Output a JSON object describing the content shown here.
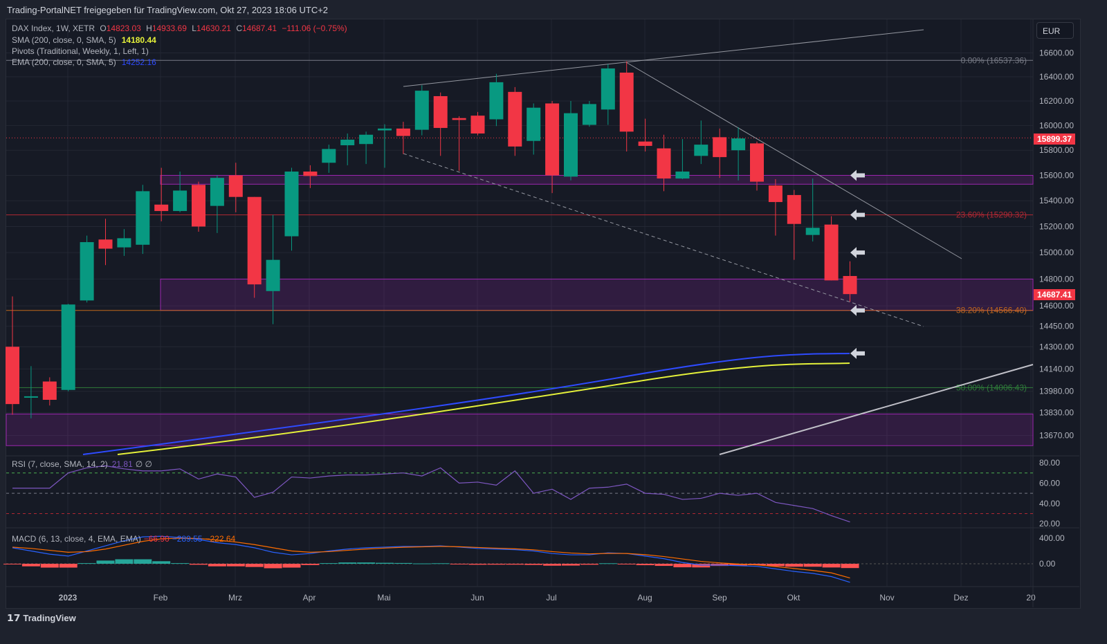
{
  "title": "Trading-PortalNET freigegeben für TradingView.com, Okt 27, 2023 18:06 UTC+2",
  "legend": {
    "symbol": "DAX Index, 1W, XETR",
    "o_label": "O",
    "o": "14823.03",
    "h_label": "H",
    "h": "14933.69",
    "l_label": "L",
    "l": "14630.21",
    "c_label": "C",
    "c": "14687.41",
    "change": "−111.06 (−0.75%)",
    "sma": "SMA (200, close, 0, SMA, 5)",
    "sma_val": "14180.44",
    "pivots": "Pivots (Traditional, Weekly, 1, Left, 1)",
    "ema": "EMA (200, close, 0, SMA, 5)",
    "ema_val": "14252.16",
    "rsi": "RSI (7, close, SMA, 14, 2)",
    "rsi_val": "21.81",
    "rsi_extra": "∅ ∅",
    "macd": "MACD (6, 13, close, 4, EMA, EMA)",
    "macd_hist": "−66.90",
    "macd_line": "−289.55",
    "macd_signal": "−222.64"
  },
  "currency": "EUR",
  "price_ticks": [
    "16600.00",
    "16400.00",
    "16200.00",
    "16000.00",
    "15800.00",
    "15600.00",
    "15400.00",
    "15200.00",
    "15000.00",
    "14800.00",
    "14600.00",
    "14450.00",
    "14300.00",
    "14140.00",
    "13980.00",
    "13830.00",
    "13670.00"
  ],
  "rsi_ticks": [
    "80.00",
    "60.00",
    "40.00",
    "20.00"
  ],
  "macd_ticks": [
    "400.00",
    "0.00"
  ],
  "time_labels": [
    "2023",
    "Feb",
    "Mrz",
    "Apr",
    "Mai",
    "Jun",
    "Jul",
    "Aug",
    "Sep",
    "Okt",
    "Nov",
    "Dez",
    "20"
  ],
  "price_tags": {
    "dotted": "15899.37",
    "last": "14687.41"
  },
  "fib": [
    {
      "label": "0.00% (16537.36)",
      "price": 16537.36,
      "color": "#787b86"
    },
    {
      "label": "23.60% (15290.32)",
      "price": 15290.32,
      "color": "#b22833"
    },
    {
      "label": "38.20% (14566.40)",
      "price": 14566.4,
      "color": "#c2681d"
    },
    {
      "label": "50.00% (14006.43)",
      "price": 14006.43,
      "color": "#2f7d3a"
    }
  ],
  "colors": {
    "up": "#089981",
    "down": "#f23645",
    "zone": "#9c27b0",
    "ema": "#2e4bff",
    "sma": "#e6f23a",
    "rsi": "#7e57c2",
    "macd": "#2962ff",
    "signal": "#ff6d00"
  },
  "zones": [
    [
      15530,
      15600
    ],
    [
      14566,
      14800
    ],
    [
      13600,
      13820
    ]
  ],
  "footer": "TradingView",
  "chart_data": {
    "type": "candlestick",
    "interval": "1W",
    "ohlc": [
      [
        14300,
        14670,
        13815,
        13890
      ],
      [
        13935,
        14160,
        13790,
        13945
      ],
      [
        14050,
        14080,
        13880,
        13920
      ],
      [
        13990,
        14615,
        13980,
        14610
      ],
      [
        14640,
        15130,
        14625,
        15080
      ],
      [
        15100,
        15260,
        14905,
        15030
      ],
      [
        15040,
        15180,
        14975,
        15110
      ],
      [
        15060,
        15525,
        14990,
        15475
      ],
      [
        15370,
        15660,
        15240,
        15320
      ],
      [
        15320,
        15630,
        15310,
        15480
      ],
      [
        15525,
        15550,
        15160,
        15200
      ],
      [
        15360,
        15600,
        15150,
        15580
      ],
      [
        15600,
        15700,
        15310,
        15430
      ],
      [
        15430,
        15430,
        14660,
        14760
      ],
      [
        14710,
        15290,
        14465,
        14945
      ],
      [
        15125,
        15660,
        15015,
        15630
      ],
      [
        15630,
        15680,
        15500,
        15595
      ],
      [
        15700,
        15845,
        15620,
        15810
      ],
      [
        15840,
        15935,
        15680,
        15885
      ],
      [
        15850,
        15950,
        15690,
        15925
      ],
      [
        15960,
        16010,
        15660,
        15975
      ],
      [
        15975,
        16030,
        15770,
        15915
      ],
      [
        15965,
        16330,
        15920,
        16285
      ],
      [
        16240,
        16270,
        15755,
        15980
      ],
      [
        16060,
        16075,
        15635,
        16045
      ],
      [
        16080,
        16110,
        15920,
        15935
      ],
      [
        16050,
        16425,
        15995,
        16355
      ],
      [
        16275,
        16315,
        15755,
        15830
      ],
      [
        15875,
        16180,
        15765,
        16145
      ],
      [
        16180,
        16200,
        15460,
        15600
      ],
      [
        15590,
        16200,
        15560,
        16100
      ],
      [
        16005,
        16200,
        15990,
        16175
      ],
      [
        16130,
        16505,
        16005,
        16470
      ],
      [
        16435,
        16530,
        15790,
        15950
      ],
      [
        15870,
        16055,
        15790,
        15835
      ],
      [
        15815,
        15925,
        15475,
        15575
      ],
      [
        15575,
        15890,
        15570,
        15630
      ],
      [
        15755,
        16040,
        15690,
        15845
      ],
      [
        15905,
        15975,
        15580,
        15745
      ],
      [
        15800,
        15985,
        15560,
        15895
      ],
      [
        15855,
        15870,
        15480,
        15550
      ],
      [
        15520,
        15570,
        15130,
        15390
      ],
      [
        15445,
        15485,
        14945,
        15220
      ],
      [
        15135,
        15575,
        15085,
        15190
      ],
      [
        15215,
        15280,
        14790,
        14790
      ],
      [
        14823.03,
        14933.69,
        14630.21,
        14687.41
      ]
    ],
    "rsi": [
      55,
      55,
      55,
      70,
      75,
      77,
      74,
      72,
      72,
      74,
      64,
      69,
      66,
      46,
      51,
      66,
      65,
      67,
      68,
      68,
      69,
      70,
      67,
      75,
      60,
      61,
      58,
      72,
      50,
      54,
      44,
      55,
      56,
      59,
      50,
      49,
      44,
      45,
      50,
      48,
      50,
      41,
      38,
      35,
      28,
      21.81
    ],
    "macd": [
      250,
      200,
      150,
      120,
      200,
      280,
      360,
      420,
      430,
      410,
      380,
      330,
      300,
      250,
      180,
      140,
      160,
      200,
      230,
      250,
      260,
      270,
      270,
      280,
      260,
      240,
      230,
      220,
      200,
      160,
      140,
      140,
      170,
      160,
      120,
      80,
      20,
      -20,
      -20,
      -30,
      -40,
      -80,
      -120,
      -150,
      -200,
      -289.55
    ],
    "signal": [
      260,
      240,
      210,
      180,
      190,
      230,
      290,
      350,
      390,
      400,
      395,
      370,
      340,
      300,
      250,
      200,
      180,
      190,
      210,
      230,
      245,
      258,
      265,
      272,
      266,
      255,
      244,
      234,
      218,
      190,
      168,
      155,
      162,
      161,
      142,
      113,
      75,
      37,
      14,
      -4,
      -18,
      -43,
      -74,
      -104,
      -142,
      -222.64
    ],
    "price_scale": "log",
    "price_range": [
      13600,
      16750
    ]
  }
}
